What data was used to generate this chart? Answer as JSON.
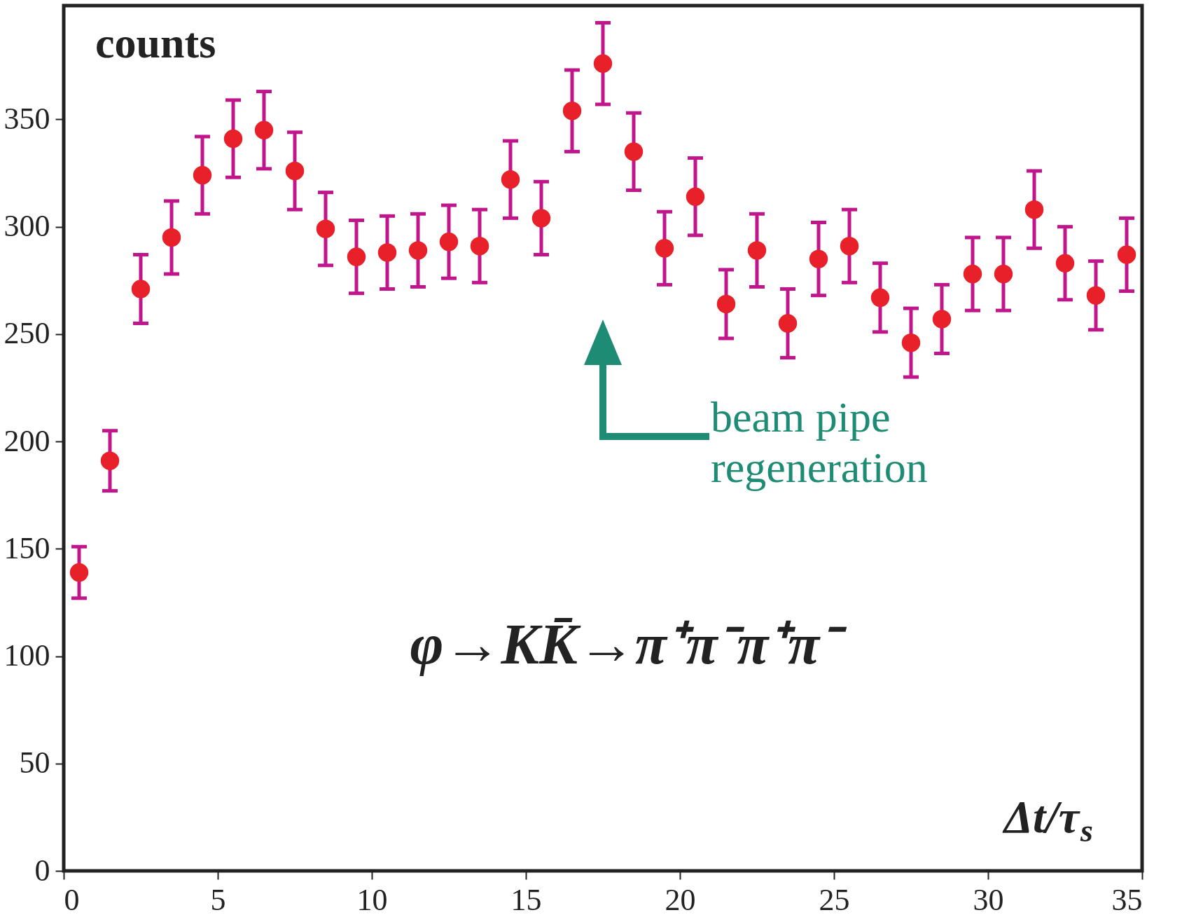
{
  "chart_data": {
    "type": "scatter",
    "xlabel": "Δt/τ$_{s}$",
    "ylabel": "counts",
    "x": [
      0.5,
      1.5,
      2.5,
      3.5,
      4.5,
      5.5,
      6.5,
      7.5,
      8.5,
      9.5,
      10.5,
      11.5,
      12.5,
      13.5,
      14.5,
      15.5,
      16.5,
      17.5,
      18.5,
      19.5,
      20.5,
      21.5,
      22.5,
      23.5,
      24.5,
      25.5,
      26.5,
      27.5,
      28.5,
      29.5,
      30.5,
      31.5,
      32.5,
      33.5,
      34.5
    ],
    "series": [
      {
        "color": "#e8202a",
        "values": [
          139,
          191,
          271,
          295,
          324,
          341,
          345,
          326,
          299,
          286,
          288,
          289,
          293,
          291,
          322,
          304,
          354,
          376,
          335,
          290,
          314,
          264,
          289,
          255,
          285,
          291,
          267,
          246,
          257,
          278,
          278,
          308,
          283,
          268,
          287
        ],
        "errors": [
          12,
          14,
          16,
          17,
          18,
          18,
          18,
          18,
          17,
          17,
          17,
          17,
          17,
          17,
          18,
          17,
          19,
          19,
          18,
          17,
          18,
          16,
          17,
          16,
          17,
          17,
          16,
          16,
          16,
          17,
          17,
          18,
          17,
          16,
          17
        ]
      }
    ],
    "marker": "circle",
    "xlim": [
      0,
      35
    ],
    "xticks": [
      0,
      5,
      10,
      15,
      20,
      25,
      30,
      35
    ],
    "ylim": [
      0,
      403
    ],
    "yticks": [
      0,
      50,
      100,
      150,
      200,
      250,
      300,
      350
    ],
    "grid": false,
    "annotations": [
      "beam pipe\nregeneration",
      "φ→KK̄→π⁺π⁻π⁺π⁻"
    ]
  }
}
